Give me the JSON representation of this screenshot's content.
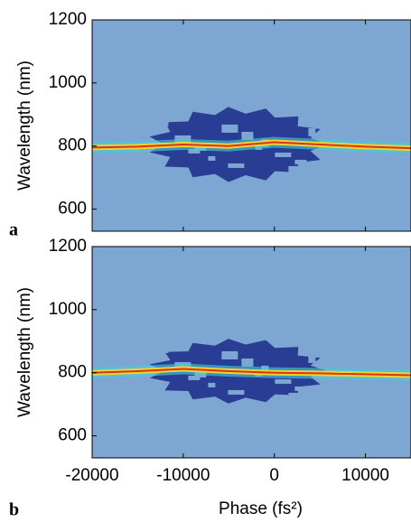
{
  "chart_data": [
    {
      "type": "heatmap",
      "panel_label": "a",
      "y_label": "Wavelength (nm)",
      "background": "#7ea6d3",
      "color": "#f2d22a",
      "x": [
        -20000,
        -15000,
        -10000,
        -5000,
        0,
        5000,
        10000,
        15000
      ],
      "values": [
        795,
        798,
        805,
        800,
        812,
        805,
        798,
        793
      ],
      "xlim": [
        -20000,
        15000
      ],
      "xticks": [
        -20000,
        -10000,
        0,
        10000
      ],
      "ylim": [
        530,
        1200
      ],
      "yticks": [
        600,
        800,
        1000,
        1200
      ]
    },
    {
      "type": "heatmap",
      "panel_label": "b",
      "y_label": "Wavelength (nm)",
      "x_label": "Phase (fs²)",
      "background": "#7ea6d3",
      "color": "#f2d22a",
      "x": [
        -20000,
        -15000,
        -10000,
        -5000,
        0,
        5000,
        10000,
        15000
      ],
      "values": [
        800,
        805,
        812,
        805,
        800,
        798,
        795,
        792
      ],
      "xlim": [
        -20000,
        15000
      ],
      "xticks": [
        -20000,
        -10000,
        0,
        10000
      ],
      "ylim": [
        530,
        1200
      ],
      "yticks": [
        600,
        800,
        1000,
        1200
      ]
    }
  ]
}
